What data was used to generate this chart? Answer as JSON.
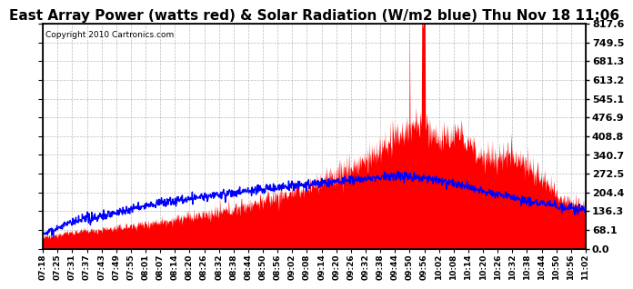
{
  "title": "East Array Power (watts red) & Solar Radiation (W/m2 blue) Thu Nov 18 11:06",
  "copyright": "Copyright 2010 Cartronics.com",
  "ylabel_right_ticks": [
    0.0,
    68.1,
    136.3,
    204.4,
    272.5,
    340.7,
    408.8,
    476.9,
    545.1,
    613.2,
    681.3,
    749.5,
    817.6
  ],
  "ymax": 817.6,
  "ymin": 0.0,
  "bg_color": "#ffffff",
  "plot_bg_color": "#ffffff",
  "grid_color": "#bbbbbb",
  "red_color": "#ff0000",
  "blue_color": "#0000ff",
  "title_fontsize": 11,
  "x_tick_labels": [
    "07:18",
    "07:25",
    "07:31",
    "07:37",
    "07:43",
    "07:49",
    "07:55",
    "08:01",
    "08:07",
    "08:14",
    "08:20",
    "08:26",
    "08:32",
    "08:38",
    "08:44",
    "08:50",
    "08:56",
    "09:02",
    "09:08",
    "09:14",
    "09:20",
    "09:26",
    "09:32",
    "09:38",
    "09:44",
    "09:50",
    "09:56",
    "10:02",
    "10:08",
    "10:14",
    "10:20",
    "10:26",
    "10:32",
    "10:38",
    "10:44",
    "10:50",
    "10:56",
    "11:02"
  ],
  "n_ticks": 38
}
